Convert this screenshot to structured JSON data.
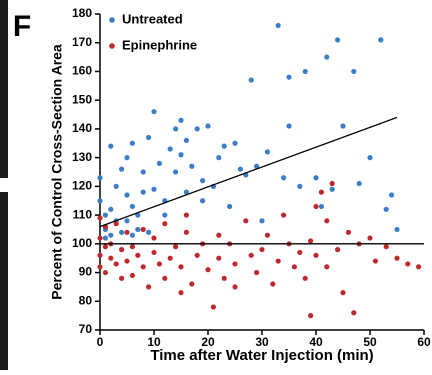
{
  "chart_data": {
    "type": "scatter",
    "panel_label": "F",
    "x_label": "Time after Water Injection (min)",
    "y_label": "Percent of Control Cross-Section Area",
    "xlim": [
      0,
      60
    ],
    "ylim": [
      70,
      180
    ],
    "xticks": [
      0,
      10,
      20,
      30,
      40,
      50,
      60
    ],
    "yticks": [
      70,
      80,
      90,
      100,
      110,
      120,
      130,
      140,
      150,
      160,
      170,
      180
    ],
    "grid": false,
    "legend": "top-left",
    "series": [
      {
        "name": "Untreated",
        "color": "#3a7dc9",
        "x": [
          0,
          0,
          1,
          1,
          1,
          2,
          2,
          2,
          3,
          3,
          4,
          4,
          5,
          5,
          5,
          6,
          6,
          6,
          7,
          7,
          8,
          8,
          9,
          9,
          10,
          10,
          11,
          12,
          12,
          13,
          14,
          14,
          15,
          15,
          16,
          16,
          17,
          18,
          19,
          19,
          20,
          21,
          22,
          23,
          24,
          25,
          26,
          27,
          28,
          29,
          30,
          31,
          33,
          34,
          35,
          35,
          37,
          38,
          40,
          41,
          42,
          43,
          44,
          45,
          47,
          48,
          50,
          52,
          53,
          54,
          55
        ],
        "values": [
          123,
          115,
          110,
          105,
          102,
          134,
          112,
          103,
          120,
          108,
          126,
          104,
          130,
          117,
          108,
          135,
          113,
          103,
          110,
          105,
          125,
          118,
          137,
          104,
          146,
          119,
          128,
          115,
          110,
          133,
          140,
          125,
          143,
          131,
          136,
          118,
          127,
          140,
          122,
          115,
          141,
          120,
          130,
          134,
          113,
          135,
          126,
          124,
          157,
          127,
          108,
          132,
          176,
          123,
          141,
          158,
          120,
          160,
          123,
          113,
          165,
          119,
          171,
          141,
          160,
          121,
          130,
          171,
          112,
          117,
          105
        ]
      },
      {
        "name": "Epinephrine",
        "color": "#c0282d",
        "x": [
          0,
          0,
          0,
          0,
          1,
          1,
          1,
          2,
          2,
          3,
          3,
          4,
          4,
          5,
          5,
          6,
          6,
          7,
          8,
          8,
          9,
          10,
          10,
          11,
          12,
          12,
          13,
          14,
          15,
          15,
          16,
          16,
          17,
          18,
          19,
          20,
          21,
          22,
          22,
          23,
          24,
          25,
          25,
          27,
          28,
          29,
          30,
          31,
          32,
          33,
          34,
          35,
          36,
          37,
          38,
          39,
          39,
          40,
          40,
          41,
          42,
          42,
          43,
          44,
          45,
          46,
          47,
          48,
          50,
          51,
          53,
          55,
          57,
          59
        ],
        "values": [
          109,
          102,
          96,
          92,
          106,
          99,
          90,
          100,
          95,
          107,
          93,
          88,
          98,
          104,
          94,
          89,
          99,
          96,
          92,
          105,
          85,
          102,
          97,
          93,
          107,
          88,
          95,
          99,
          83,
          92,
          110,
          104,
          86,
          96,
          100,
          91,
          78,
          95,
          103,
          88,
          100,
          85,
          93,
          108,
          96,
          90,
          98,
          103,
          86,
          94,
          110,
          100,
          92,
          97,
          88,
          101,
          75,
          113,
          96,
          118,
          108,
          92,
          121,
          98,
          83,
          104,
          76,
          100,
          102,
          94,
          99,
          95,
          93,
          92
        ]
      }
    ],
    "trend_lines": [
      {
        "x": [
          0,
          55
        ],
        "y": [
          106,
          144
        ],
        "color": "#000000"
      },
      {
        "x": [
          0,
          60
        ],
        "y": [
          100,
          100
        ],
        "color": "#000000"
      }
    ]
  }
}
